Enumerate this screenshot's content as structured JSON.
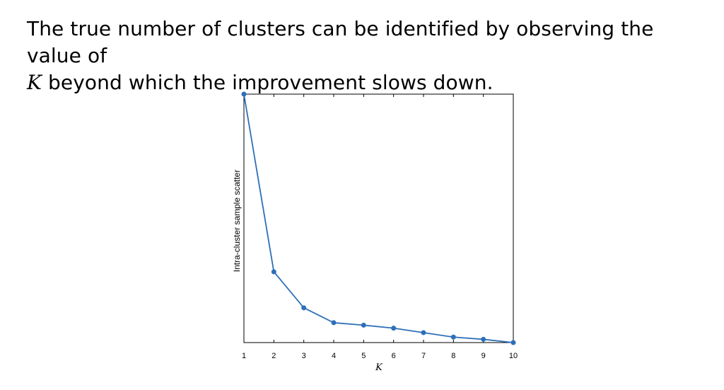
{
  "caption": {
    "line1": "The true number of clusters can be identified by observing the value of",
    "line2_var": "K",
    "line2_rest": " beyond which the improvement slows down."
  },
  "chart_data": {
    "type": "line",
    "x": [
      1,
      2,
      3,
      4,
      5,
      6,
      7,
      8,
      9,
      10
    ],
    "y": [
      100,
      28.5,
      14,
      8,
      7,
      5.8,
      4,
      2.2,
      1.3,
      0
    ],
    "xlabel": "K",
    "ylabel": "Intra-cluster sample scatter",
    "xlim": [
      1,
      10
    ],
    "ylim": [
      0,
      100
    ],
    "x_tick_labels": [
      "1",
      "2",
      "3",
      "4",
      "5",
      "6",
      "7",
      "8",
      "9",
      "10"
    ],
    "y_tick_labels": [],
    "grid": false,
    "line_color": "#2e6fb8",
    "marker": "circle"
  }
}
